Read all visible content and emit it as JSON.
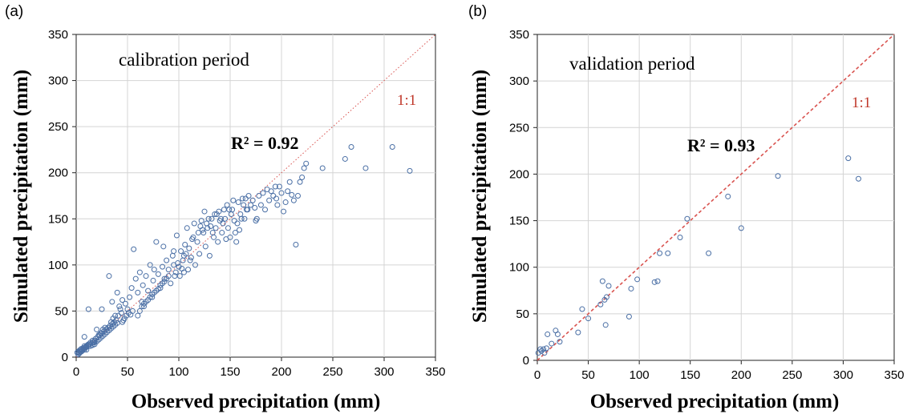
{
  "chart_data": [
    {
      "type": "scatter",
      "panel_label": "(a)",
      "annotation": "calibration period",
      "r2_label": "R² = 0.92",
      "ref_line_label": "1:1",
      "xlabel": "Observed precipitation (mm)",
      "ylabel": "Simulated precipitation (mm)",
      "xlim": [
        0,
        350
      ],
      "ylim": [
        0,
        350
      ],
      "x_ticks": [
        "0",
        "50",
        "100",
        "150",
        "200",
        "250",
        "300",
        "350"
      ],
      "y_ticks": [
        "0",
        "50",
        "100",
        "150",
        "200",
        "250",
        "300",
        "350"
      ],
      "reference_line": "1:1 dotted red",
      "marker_color": "#4a6fa5",
      "points": [
        [
          1,
          5
        ],
        [
          2,
          6
        ],
        [
          3,
          7
        ],
        [
          3,
          5
        ],
        [
          4,
          8
        ],
        [
          5,
          6
        ],
        [
          5,
          9
        ],
        [
          6,
          7
        ],
        [
          7,
          10
        ],
        [
          8,
          8
        ],
        [
          8,
          12
        ],
        [
          9,
          10
        ],
        [
          10,
          11
        ],
        [
          10,
          8
        ],
        [
          11,
          13
        ],
        [
          12,
          12
        ],
        [
          13,
          14
        ],
        [
          14,
          12
        ],
        [
          15,
          15
        ],
        [
          16,
          13
        ],
        [
          17,
          16
        ],
        [
          18,
          18
        ],
        [
          18,
          14
        ],
        [
          19,
          20
        ],
        [
          20,
          17
        ],
        [
          21,
          22
        ],
        [
          22,
          19
        ],
        [
          23,
          24
        ],
        [
          24,
          21
        ],
        [
          25,
          26
        ],
        [
          26,
          23
        ],
        [
          27,
          28
        ],
        [
          28,
          25
        ],
        [
          29,
          30
        ],
        [
          30,
          27
        ],
        [
          31,
          32
        ],
        [
          32,
          29
        ],
        [
          33,
          34
        ],
        [
          34,
          31
        ],
        [
          35,
          36
        ],
        [
          36,
          33
        ],
        [
          37,
          38
        ],
        [
          38,
          35
        ],
        [
          39,
          40
        ],
        [
          40,
          37
        ],
        [
          8,
          22
        ],
        [
          12,
          52
        ],
        [
          20,
          30
        ],
        [
          25,
          52
        ],
        [
          32,
          88
        ],
        [
          35,
          60
        ],
        [
          38,
          45
        ],
        [
          40,
          70
        ],
        [
          42,
          55
        ],
        [
          44,
          48
        ],
        [
          45,
          62
        ],
        [
          46,
          40
        ],
        [
          48,
          58
        ],
        [
          50,
          52
        ],
        [
          52,
          65
        ],
        [
          54,
          75
        ],
        [
          55,
          50
        ],
        [
          56,
          117
        ],
        [
          58,
          85
        ],
        [
          60,
          70
        ],
        [
          62,
          92
        ],
        [
          64,
          60
        ],
        [
          65,
          78
        ],
        [
          66,
          55
        ],
        [
          68,
          88
        ],
        [
          70,
          72
        ],
        [
          72,
          100
        ],
        [
          74,
          65
        ],
        [
          75,
          83
        ],
        [
          76,
          95
        ],
        [
          78,
          125
        ],
        [
          80,
          90
        ],
        [
          82,
          75
        ],
        [
          84,
          98
        ],
        [
          85,
          120
        ],
        [
          86,
          85
        ],
        [
          88,
          105
        ],
        [
          90,
          95
        ],
        [
          92,
          80
        ],
        [
          94,
          110
        ],
        [
          95,
          100
        ],
        [
          96,
          88
        ],
        [
          98,
          132
        ],
        [
          100,
          98
        ],
        [
          102,
          115
        ],
        [
          104,
          105
        ],
        [
          105,
          92
        ],
        [
          106,
          122
        ],
        [
          108,
          140
        ],
        [
          110,
          118
        ],
        [
          112,
          108
        ],
        [
          114,
          130
        ],
        [
          115,
          145
        ],
        [
          116,
          100
        ],
        [
          118,
          125
        ],
        [
          120,
          112
        ],
        [
          122,
          148
        ],
        [
          124,
          135
        ],
        [
          125,
          158
        ],
        [
          126,
          120
        ],
        [
          128,
          140
        ],
        [
          130,
          110
        ],
        [
          132,
          150
        ],
        [
          134,
          130
        ],
        [
          135,
          155
        ],
        [
          136,
          140
        ],
        [
          138,
          125
        ],
        [
          140,
          148
        ],
        [
          142,
          135
        ],
        [
          144,
          160
        ],
        [
          145,
          150
        ],
        [
          146,
          128
        ],
        [
          148,
          140
        ],
        [
          150,
          130
        ],
        [
          152,
          160
        ],
        [
          154,
          148
        ],
        [
          155,
          135
        ],
        [
          156,
          125
        ],
        [
          158,
          168
        ],
        [
          160,
          155
        ],
        [
          162,
          172
        ],
        [
          164,
          150
        ],
        [
          166,
          160
        ],
        [
          168,
          175
        ],
        [
          170,
          165
        ],
        [
          172,
          170
        ],
        [
          174,
          162
        ],
        [
          175,
          148
        ],
        [
          176,
          150
        ],
        [
          178,
          175
        ],
        [
          180,
          165
        ],
        [
          182,
          178
        ],
        [
          184,
          160
        ],
        [
          186,
          182
        ],
        [
          188,
          170
        ],
        [
          190,
          180
        ],
        [
          192,
          175
        ],
        [
          194,
          185
        ],
        [
          195,
          172
        ],
        [
          196,
          165
        ],
        [
          198,
          185
        ],
        [
          200,
          178
        ],
        [
          202,
          158
        ],
        [
          204,
          168
        ],
        [
          206,
          180
        ],
        [
          208,
          190
        ],
        [
          210,
          176
        ],
        [
          212,
          170
        ],
        [
          214,
          122
        ],
        [
          216,
          175
        ],
        [
          218,
          190
        ],
        [
          220,
          195
        ],
        [
          222,
          205
        ],
        [
          224,
          210
        ],
        [
          240,
          205
        ],
        [
          262,
          215
        ],
        [
          268,
          228
        ],
        [
          282,
          205
        ],
        [
          308,
          228
        ],
        [
          325,
          202
        ],
        [
          60,
          45
        ],
        [
          62,
          50
        ],
        [
          64,
          55
        ],
        [
          66,
          58
        ],
        [
          68,
          60
        ],
        [
          70,
          62
        ],
        [
          72,
          65
        ],
        [
          74,
          68
        ],
        [
          76,
          70
        ],
        [
          78,
          72
        ],
        [
          80,
          74
        ],
        [
          82,
          78
        ],
        [
          84,
          80
        ],
        [
          86,
          82
        ],
        [
          88,
          85
        ],
        [
          90,
          88
        ],
        [
          45,
          38
        ],
        [
          47,
          42
        ],
        [
          49,
          45
        ],
        [
          51,
          48
        ],
        [
          53,
          46
        ],
        [
          43,
          52
        ],
        [
          41,
          45
        ],
        [
          36,
          42
        ],
        [
          34,
          38
        ],
        [
          28,
          32
        ],
        [
          26,
          30
        ],
        [
          24,
          26
        ],
        [
          22,
          24
        ],
        [
          18,
          16
        ],
        [
          16,
          18
        ],
        [
          14,
          16
        ],
        [
          12,
          14
        ],
        [
          10,
          12
        ],
        [
          9,
          11
        ],
        [
          7,
          9
        ],
        [
          6,
          8
        ],
        [
          4,
          6
        ],
        [
          3,
          4
        ],
        [
          2,
          3
        ],
        [
          95,
          115
        ],
        [
          97,
          92
        ],
        [
          99,
          102
        ],
        [
          101,
          88
        ],
        [
          103,
          96
        ],
        [
          105,
          110
        ],
        [
          107,
          112
        ],
        [
          109,
          95
        ],
        [
          111,
          105
        ],
        [
          113,
          128
        ],
        [
          119,
          135
        ],
        [
          121,
          142
        ],
        [
          123,
          138
        ],
        [
          127,
          145
        ],
        [
          129,
          150
        ],
        [
          131,
          142
        ],
        [
          133,
          135
        ],
        [
          137,
          155
        ],
        [
          139,
          158
        ],
        [
          141,
          150
        ],
        [
          143,
          145
        ],
        [
          147,
          165
        ],
        [
          149,
          160
        ],
        [
          151,
          155
        ],
        [
          153,
          170
        ],
        [
          157,
          145
        ],
        [
          159,
          138
        ],
        [
          161,
          150
        ],
        [
          163,
          165
        ],
        [
          165,
          172
        ],
        [
          167,
          160
        ]
      ]
    },
    {
      "type": "scatter",
      "panel_label": "(b)",
      "annotation": "validation  period",
      "r2_label": "R² = 0.93",
      "ref_line_label": "1:1",
      "xlabel": "Observed precipitation (mm)",
      "ylabel": "Simulated precipitation (mm)",
      "xlim": [
        0,
        350
      ],
      "ylim": [
        0,
        350
      ],
      "x_ticks": [
        "0",
        "50",
        "100",
        "150",
        "200",
        "250",
        "300",
        "350"
      ],
      "y_ticks": [
        "0",
        "50",
        "100",
        "150",
        "200",
        "250",
        "300",
        "350"
      ],
      "reference_line": "1:1 dashed red",
      "marker_color": "#4a6fa5",
      "points": [
        [
          1,
          8
        ],
        [
          3,
          12
        ],
        [
          4,
          10
        ],
        [
          6,
          12
        ],
        [
          7,
          8
        ],
        [
          9,
          13
        ],
        [
          10,
          28
        ],
        [
          14,
          18
        ],
        [
          18,
          32
        ],
        [
          20,
          28
        ],
        [
          22,
          20
        ],
        [
          40,
          30
        ],
        [
          44,
          55
        ],
        [
          50,
          45
        ],
        [
          62,
          60
        ],
        [
          64,
          85
        ],
        [
          66,
          65
        ],
        [
          67,
          38
        ],
        [
          68,
          68
        ],
        [
          70,
          80
        ],
        [
          90,
          47
        ],
        [
          92,
          77
        ],
        [
          98,
          87
        ],
        [
          115,
          84
        ],
        [
          118,
          85
        ],
        [
          120,
          115
        ],
        [
          128,
          115
        ],
        [
          140,
          132
        ],
        [
          147,
          152
        ],
        [
          168,
          115
        ],
        [
          187,
          176
        ],
        [
          200,
          142
        ],
        [
          236,
          198
        ],
        [
          305,
          217
        ],
        [
          315,
          195
        ]
      ]
    }
  ]
}
